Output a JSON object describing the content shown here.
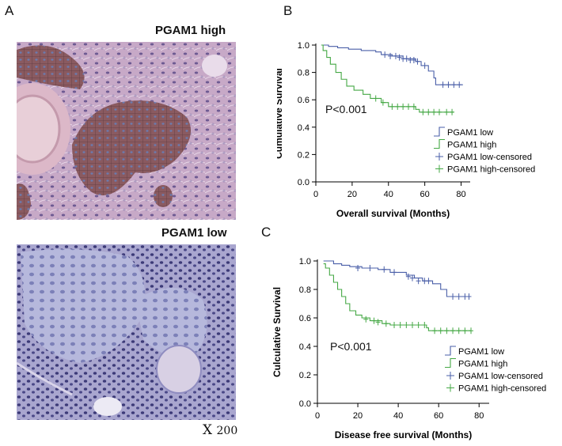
{
  "panel_a": {
    "letter": "A",
    "top_label": "PGAM1 high",
    "bottom_label": "PGAM1 low",
    "magnification_prefix": "X",
    "magnification_value": "200"
  },
  "panel_b": {
    "letter": "B",
    "p_value": "P<0.001"
  },
  "panel_c": {
    "letter": "C",
    "p_value": "P<0.001"
  },
  "chart_data": [
    {
      "type": "line",
      "panel": "B",
      "xlabel": "Overall survival (Months)",
      "ylabel": "Cumulative Survival",
      "xlim": [
        0,
        85
      ],
      "ylim": [
        0,
        1.0
      ],
      "xticks": [
        0,
        20,
        40,
        60,
        80
      ],
      "yticks": [
        0.0,
        0.2,
        0.4,
        0.6,
        0.8,
        1.0
      ],
      "ytick_labels": [
        "0.0",
        "0.2",
        "0.4",
        "0.6",
        "0.8",
        "1.0"
      ],
      "legend_position": "bottom-right",
      "legend": [
        "PGAM1 low",
        "PGAM1 high",
        "PGAM1 low-censored",
        "PGAM1 high-censored"
      ],
      "series": [
        {
          "name": "PGAM1 low",
          "color": "#4a5fa8",
          "steps": [
            [
              3,
              1.0
            ],
            [
              7,
              0.99
            ],
            [
              12,
              0.98
            ],
            [
              18,
              0.97
            ],
            [
              25,
              0.96
            ],
            [
              33,
              0.95
            ],
            [
              36,
              0.93
            ],
            [
              42,
              0.92
            ],
            [
              48,
              0.9
            ],
            [
              55,
              0.88
            ],
            [
              58,
              0.85
            ],
            [
              62,
              0.81
            ],
            [
              65,
              0.76
            ],
            [
              66,
              0.71
            ],
            [
              81,
              0.71
            ]
          ],
          "censored": [
            [
              38,
              0.93
            ],
            [
              41,
              0.92
            ],
            [
              44,
              0.92
            ],
            [
              46,
              0.91
            ],
            [
              48,
              0.9
            ],
            [
              50,
              0.9
            ],
            [
              52,
              0.89
            ],
            [
              54,
              0.89
            ],
            [
              56,
              0.88
            ],
            [
              60,
              0.85
            ],
            [
              70,
              0.71
            ],
            [
              73,
              0.71
            ],
            [
              76,
              0.71
            ],
            [
              79,
              0.71
            ]
          ]
        },
        {
          "name": "PGAM1 high",
          "color": "#45a845",
          "steps": [
            [
              3,
              1.0
            ],
            [
              4,
              0.96
            ],
            [
              6,
              0.91
            ],
            [
              8,
              0.86
            ],
            [
              11,
              0.8
            ],
            [
              14,
              0.75
            ],
            [
              17,
              0.7
            ],
            [
              21,
              0.67
            ],
            [
              26,
              0.64
            ],
            [
              30,
              0.61
            ],
            [
              36,
              0.58
            ],
            [
              40,
              0.55
            ],
            [
              55,
              0.53
            ],
            [
              57,
              0.51
            ],
            [
              76,
              0.51
            ]
          ],
          "censored": [
            [
              33,
              0.61
            ],
            [
              37,
              0.58
            ],
            [
              42,
              0.55
            ],
            [
              45,
              0.55
            ],
            [
              48,
              0.55
            ],
            [
              51,
              0.55
            ],
            [
              54,
              0.55
            ],
            [
              59,
              0.51
            ],
            [
              62,
              0.51
            ],
            [
              65,
              0.51
            ],
            [
              68,
              0.51
            ],
            [
              72,
              0.51
            ],
            [
              75,
              0.51
            ]
          ]
        }
      ]
    },
    {
      "type": "line",
      "panel": "C",
      "xlabel": "Disease free survival (Months)",
      "ylabel": "Culculative Survival",
      "xlim": [
        0,
        85
      ],
      "ylim": [
        0,
        1.0
      ],
      "xticks": [
        0,
        20,
        40,
        60,
        80
      ],
      "yticks": [
        0.0,
        0.2,
        0.4,
        0.6,
        0.8,
        1.0
      ],
      "ytick_labels": [
        "0.0",
        "0.2",
        "0.4",
        "0.6",
        "0.8",
        "1.0"
      ],
      "legend_position": "bottom-right",
      "legend": [
        "PGAM1 low",
        "PGAM1 high",
        "PGAM1 low-censored",
        "PGAM1 high-censored"
      ],
      "series": [
        {
          "name": "PGAM1 low",
          "color": "#4a5fa8",
          "steps": [
            [
              3,
              1.0
            ],
            [
              8,
              0.98
            ],
            [
              12,
              0.97
            ],
            [
              16,
              0.96
            ],
            [
              22,
              0.95
            ],
            [
              30,
              0.94
            ],
            [
              36,
              0.92
            ],
            [
              44,
              0.9
            ],
            [
              48,
              0.88
            ],
            [
              52,
              0.86
            ],
            [
              57,
              0.84
            ],
            [
              61,
              0.8
            ],
            [
              64,
              0.75
            ],
            [
              76,
              0.75
            ]
          ],
          "censored": [
            [
              20,
              0.95
            ],
            [
              26,
              0.95
            ],
            [
              33,
              0.94
            ],
            [
              38,
              0.92
            ],
            [
              45,
              0.89
            ],
            [
              47,
              0.88
            ],
            [
              50,
              0.86
            ],
            [
              53,
              0.86
            ],
            [
              55,
              0.86
            ],
            [
              67,
              0.75
            ],
            [
              70,
              0.75
            ],
            [
              73,
              0.75
            ],
            [
              75,
              0.75
            ]
          ]
        },
        {
          "name": "PGAM1 high",
          "color": "#45a845",
          "steps": [
            [
              3,
              0.98
            ],
            [
              4,
              0.95
            ],
            [
              6,
              0.9
            ],
            [
              8,
              0.85
            ],
            [
              10,
              0.8
            ],
            [
              12,
              0.75
            ],
            [
              14,
              0.7
            ],
            [
              16,
              0.65
            ],
            [
              19,
              0.62
            ],
            [
              22,
              0.6
            ],
            [
              26,
              0.58
            ],
            [
              32,
              0.56
            ],
            [
              36,
              0.55
            ],
            [
              54,
              0.53
            ],
            [
              55,
              0.51
            ],
            [
              76,
              0.51
            ]
          ],
          "censored": [
            [
              24,
              0.59
            ],
            [
              28,
              0.58
            ],
            [
              30,
              0.57
            ],
            [
              34,
              0.56
            ],
            [
              38,
              0.55
            ],
            [
              41,
              0.55
            ],
            [
              44,
              0.55
            ],
            [
              47,
              0.55
            ],
            [
              50,
              0.55
            ],
            [
              53,
              0.55
            ],
            [
              58,
              0.51
            ],
            [
              61,
              0.51
            ],
            [
              64,
              0.51
            ],
            [
              67,
              0.51
            ],
            [
              70,
              0.51
            ],
            [
              73,
              0.51
            ],
            [
              76,
              0.51
            ]
          ]
        }
      ]
    }
  ]
}
